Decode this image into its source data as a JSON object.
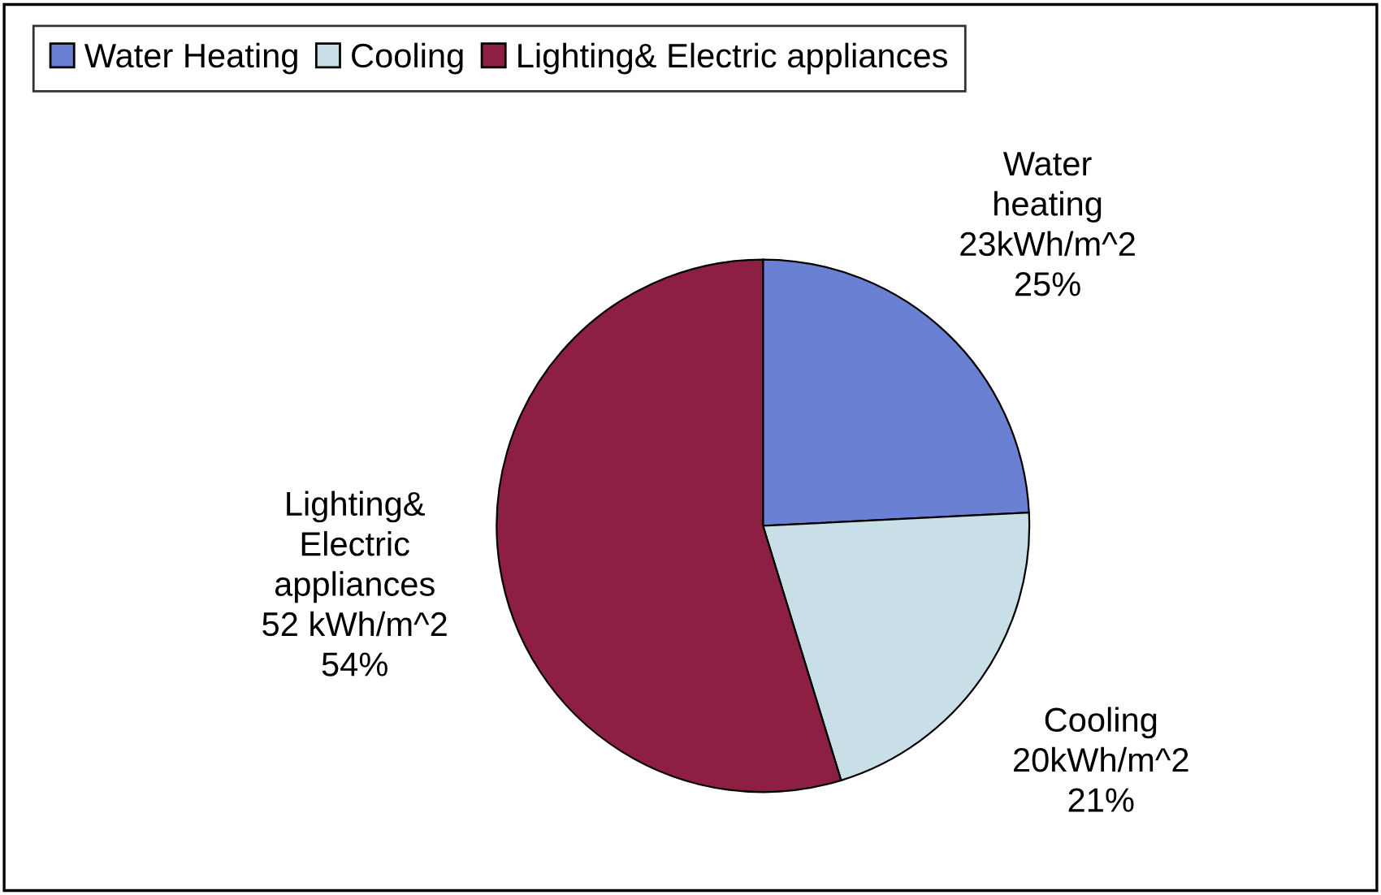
{
  "chart_data": {
    "type": "pie",
    "categories": [
      "Water Heating",
      "Cooling",
      "Lighting& Electric appliances"
    ],
    "values": [
      23,
      20,
      52
    ],
    "colors": [
      "#6a80d2",
      "#c9dfe8",
      "#8c1f42"
    ],
    "value_labels": [
      "Water\nheating\n23kWh/m^2\n25%",
      "Cooling\n20kWh/m^2\n21%",
      "Lighting&\nElectric\nappliances\n52 kWh/m^2\n54%"
    ],
    "legend": "top left"
  }
}
